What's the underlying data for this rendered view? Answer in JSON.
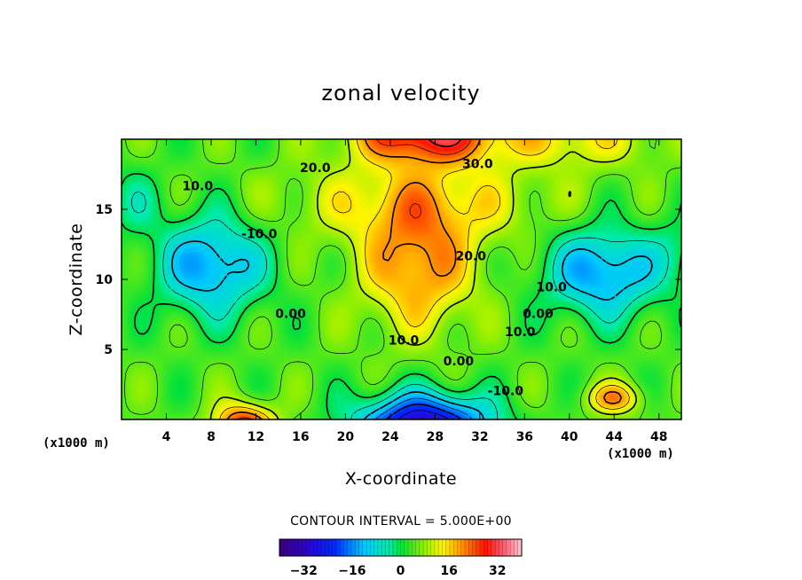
{
  "chart_data": {
    "type": "contour",
    "title": "zonal velocity",
    "xlabel": "X-coordinate",
    "ylabel": "Z-coordinate",
    "x_unit_label": "(x1000 m)",
    "xlim": [
      0,
      50
    ],
    "ylim": [
      0,
      20
    ],
    "x_ticks": [
      4,
      8,
      12,
      16,
      20,
      24,
      28,
      32,
      36,
      40,
      44,
      48
    ],
    "y_ticks": [
      5,
      10,
      15
    ],
    "contour_interval_text": "CONTOUR INTERVAL = 5.000E+00",
    "contour_labels": [
      {
        "text": "20.0",
        "x": 17.3,
        "z": 17.9
      },
      {
        "text": "30.0",
        "x": 31.8,
        "z": 18.2
      },
      {
        "text": "10.0",
        "x": 6.8,
        "z": 16.6
      },
      {
        "text": "-10.0",
        "x": 12.3,
        "z": 13.2
      },
      {
        "text": "20.0",
        "x": 31.2,
        "z": 11.6
      },
      {
        "text": "0.00",
        "x": 15.1,
        "z": 7.5
      },
      {
        "text": "10.0",
        "x": 38.4,
        "z": 9.4
      },
      {
        "text": "0.00",
        "x": 37.2,
        "z": 7.5
      },
      {
        "text": "10.0",
        "x": 35.6,
        "z": 6.2
      },
      {
        "text": "10.0",
        "x": 25.2,
        "z": 5.6
      },
      {
        "text": "0.00",
        "x": 30.1,
        "z": 4.1
      },
      {
        "text": "-10.0",
        "x": 34.3,
        "z": 2.0
      }
    ],
    "features": [
      {
        "kind": "max",
        "x": 26.5,
        "z": 11,
        "value": 20
      },
      {
        "kind": "min",
        "x": 8,
        "z": 11,
        "value": -15
      },
      {
        "kind": "min",
        "x": 43,
        "z": 10.5,
        "value": -15
      },
      {
        "kind": "min",
        "x": 27,
        "z": 0,
        "value": -32
      },
      {
        "kind": "max",
        "x": 27,
        "z": 20,
        "value": 35
      },
      {
        "kind": "max",
        "x": 11,
        "z": 0,
        "value": 30
      }
    ],
    "colorbar": {
      "range": [
        -40,
        40
      ],
      "ticks": [
        -32,
        -16,
        0,
        16,
        32
      ],
      "tick_labels": [
        "−32",
        "−16",
        "0",
        "16",
        "32"
      ]
    },
    "grid": false,
    "legend": "none"
  }
}
